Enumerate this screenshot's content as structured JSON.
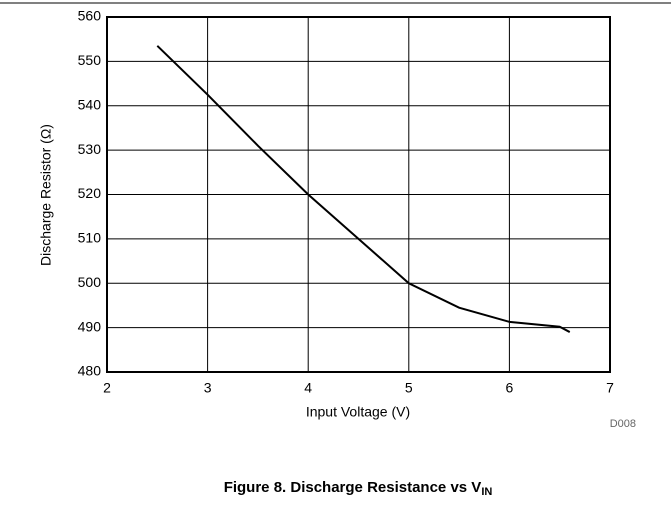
{
  "chart_data": {
    "type": "line",
    "x_label": "Input Voltage (V)",
    "y_label": "Discharge Resistor (Ω)",
    "figure_id": "D008",
    "caption": {
      "text": "Figure 8. Discharge Resistance vs V",
      "subscript": "IN"
    },
    "x": [
      2.5,
      3,
      3.5,
      4,
      4.5,
      5,
      5.5,
      6,
      6.5,
      6.6
    ],
    "series": [
      {
        "name": "Discharge Resistor",
        "color": "#000000",
        "values": [
          553.5,
          542.5,
          531,
          520,
          510,
          500,
          494.5,
          491.3,
          490.2,
          489
        ]
      }
    ],
    "xlim": [
      2,
      7
    ],
    "xticks": [
      2,
      3,
      4,
      5,
      6,
      7
    ],
    "ylim": [
      480,
      560
    ],
    "yticks": [
      480,
      490,
      500,
      510,
      520,
      530,
      540,
      550,
      560
    ],
    "grid": true
  }
}
